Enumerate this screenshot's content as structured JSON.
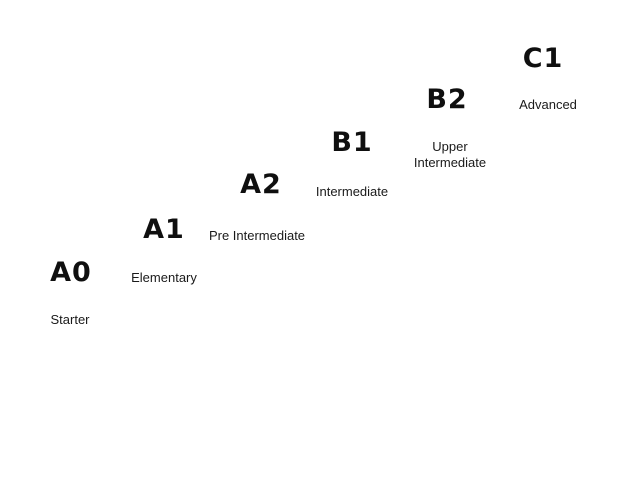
{
  "levels": [
    {
      "code": "A0",
      "name_lines": [
        "Starter"
      ],
      "rank": 1,
      "color_start": "#f6a13f",
      "color_end": "#f4972a"
    },
    {
      "code": "A1",
      "name_lines": [
        "Elementary"
      ],
      "rank": 2,
      "color_start": "#f79a22",
      "color_end": "#f38a1f"
    },
    {
      "code": "A2",
      "name_lines": [
        "Pre Intermediate"
      ],
      "rank": 3,
      "color_start": "#f4872a",
      "color_end": "#ea4f36"
    },
    {
      "code": "B1",
      "name_lines": [
        "Intermediate"
      ],
      "rank": 4,
      "color_start": "#e4622c",
      "color_end": "#e63e36"
    },
    {
      "code": "B2",
      "name_lines": [
        "Upper",
        "Intermediate"
      ],
      "rank": 5,
      "color_start": "#e8433b",
      "color_end": "#d93232"
    },
    {
      "code": "C1",
      "name_lines": [
        "Advanced"
      ],
      "rank": 6,
      "color_start": "#8e1719",
      "color_end": "#b81c23"
    }
  ]
}
